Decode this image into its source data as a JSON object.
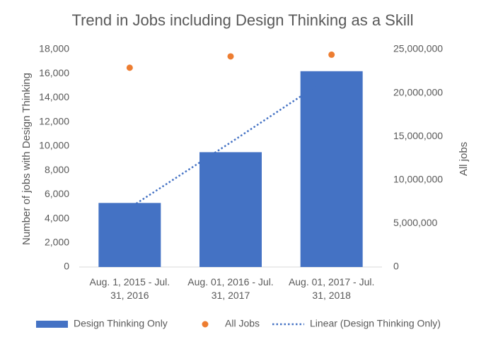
{
  "chart_data": {
    "type": "combo",
    "title": "Trend in Jobs including Design Thinking as a Skill",
    "y_label": "Number of jobs with Design Thinking",
    "y2_label": "All jobs",
    "categories": [
      "Aug. 1, 2015 - Jul. 31, 2016",
      "Aug. 01, 2016 - Jul. 31, 2017",
      "Aug. 01, 2017 - Jul. 31, 2018"
    ],
    "series": [
      {
        "name": "Design Thinking Only",
        "type": "bar",
        "color": "#4472c4",
        "values": [
          5300,
          9500,
          16200
        ]
      },
      {
        "name": "All Jobs",
        "type": "scatter",
        "color": "#ed7d31",
        "axis": "y2",
        "values": [
          22900000,
          24200000,
          24400000
        ]
      },
      {
        "name": "Linear (Design Thinking Only)",
        "type": "line",
        "style": "dotted",
        "color": "#4472c4",
        "values": [
          4900,
          10300,
          15800
        ]
      }
    ],
    "ylim": [
      0,
      18000
    ],
    "yticks": [
      0,
      {
        "value": 2000,
        "label": "2,000"
      },
      {
        "value": 4000,
        "label": "4,000"
      },
      {
        "value": 6000,
        "label": "6,000"
      },
      {
        "value": 8000,
        "label": "8,000"
      },
      {
        "value": 10000,
        "label": "10,000"
      },
      {
        "value": 12000,
        "label": "12,000"
      },
      {
        "value": 14000,
        "label": "14,000"
      },
      {
        "value": 16000,
        "label": "16,000"
      },
      {
        "value": 18000,
        "label": "18,000"
      }
    ],
    "y2lim": [
      0,
      25000000
    ],
    "y2ticks": [
      0,
      {
        "value": 5000000,
        "label": "5,000,000"
      },
      {
        "value": 10000000,
        "label": "10,000,000"
      },
      {
        "value": 15000000,
        "label": "15,000,000"
      },
      {
        "value": 20000000,
        "label": "20,000,000"
      },
      {
        "value": 25000000,
        "label": "25,000,000"
      }
    ],
    "legend": "bottom"
  }
}
